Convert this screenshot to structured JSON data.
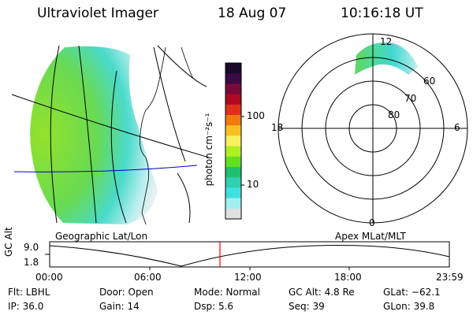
{
  "header": {
    "title": "Ultraviolet Imager",
    "date": "18 Aug 07",
    "time": "10:16:18 UT"
  },
  "colorbar": {
    "label": "photon cm⁻²s⁻¹",
    "ticks": [
      "100",
      "10"
    ],
    "colors": [
      "#1a0a28",
      "#3a0a45",
      "#7a0a3a",
      "#b00a20",
      "#e0301a",
      "#f07a10",
      "#f8c020",
      "#f8f060",
      "#b0f020",
      "#60e020",
      "#20c070",
      "#30d0b0",
      "#40e0e0",
      "#a0f0f0",
      "#e0e0e0"
    ]
  },
  "polar_plot": {
    "labels": [
      "12",
      "18",
      "6",
      "0",
      "60",
      "70",
      "80"
    ]
  },
  "panel_labels": {
    "left": "Geographic Lat/Lon",
    "right": "Apex MLat/MLT"
  },
  "altitude_plot": {
    "ylabel": "GC Alt",
    "yticks": [
      "9.0",
      "1.8"
    ],
    "xticks": [
      "00:00",
      "06:00",
      "12:00",
      "18:00",
      "23:59"
    ],
    "marker_color": "#ff0000"
  },
  "footer": {
    "flt": "Flt: LBHL",
    "door": "Door: Open",
    "mode": "Mode: Normal",
    "gc_alt": "GC Alt: 4.8 Re",
    "glat": "GLat: −62.1",
    "ip": "IP: 36.0",
    "gain": "Gain: 14",
    "dsp": "Dsp:     5.6",
    "seq": "Seq: 39",
    "glon": "GLon:  39.8"
  }
}
